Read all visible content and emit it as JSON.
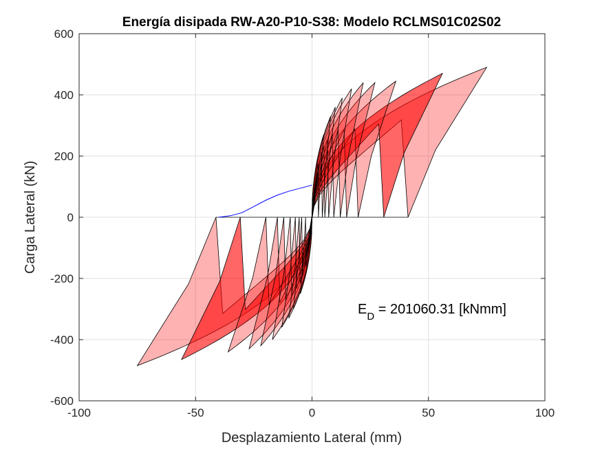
{
  "chart_data": {
    "type": "line",
    "title": "Energía disipada RW-A20-P10-S38: Modelo RCLMS01C02S02",
    "xlabel": "Desplazamiento Lateral (mm)",
    "ylabel": "Carga Lateral (kN)",
    "xlim": [
      -100,
      100
    ],
    "ylim": [
      -600,
      600
    ],
    "xticks": [
      -100,
      -50,
      0,
      50,
      100
    ],
    "yticks": [
      -600,
      -400,
      -200,
      0,
      200,
      400,
      600
    ],
    "grid": true,
    "annotation": {
      "base": "E",
      "subscript": "D",
      "text": " = 201060.31 [kNmm]"
    },
    "colors": {
      "fill_dark": "#ff0000",
      "fill_light": "#ffb3b3",
      "stroke": "#000000",
      "envelope": "#0000ff"
    },
    "cycles": [
      {
        "dmax": 5,
        "fmax": 270,
        "fmin": -250,
        "alpha": 0.2
      },
      {
        "dmax": 8,
        "fmax": 330,
        "fmin": -300,
        "alpha": 0.2
      },
      {
        "dmax": 10,
        "fmax": 360,
        "fmin": -330,
        "alpha": 0.2
      },
      {
        "dmax": 13,
        "fmax": 390,
        "fmin": -360,
        "alpha": 0.2
      },
      {
        "dmax": 17,
        "fmax": 420,
        "fmin": -400,
        "alpha": 0.2
      },
      {
        "dmax": 22,
        "fmax": 440,
        "fmin": -420,
        "alpha": 0.3
      },
      {
        "dmax": 27,
        "fmax": 440,
        "fmin": -430,
        "alpha": 0.3
      },
      {
        "dmax": 36,
        "fmax": 445,
        "fmin": -440,
        "alpha": 0.3
      },
      {
        "dmax": 56,
        "fmax": 470,
        "fmin": -465,
        "alpha": 0.6
      },
      {
        "dmax": 75,
        "fmax": 490,
        "fmin": -485,
        "alpha": 0.3
      }
    ],
    "envelope": {
      "x": [
        -40,
        -35,
        -30,
        -25,
        -20,
        -15,
        -10,
        -5,
        0
      ],
      "y": [
        0,
        5,
        15,
        35,
        55,
        72,
        85,
        95,
        105
      ]
    }
  }
}
